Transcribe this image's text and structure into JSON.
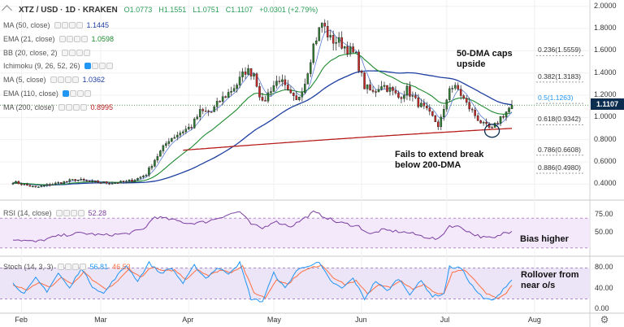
{
  "header": {
    "symbol": "XTZ / USD · 1D · KRAKEN",
    "open": "O1.0773",
    "high": "H1.1551",
    "low": "L1.0751",
    "close": "C1.1107",
    "change": "+0.0301 (+2.79%)"
  },
  "indicators": [
    {
      "label": "MA (50, close)",
      "value": "1.1445",
      "color": "#1e3fa0"
    },
    {
      "label": "EMA (21, close)",
      "value": "1.0598",
      "color": "#1e8a2f"
    },
    {
      "label": "BB (20, close, 2)",
      "value": "",
      "color": "#888888"
    },
    {
      "label": "Ichimoku (9, 26, 52, 26)",
      "value": "",
      "color": "#888888"
    },
    {
      "label": "MA (5, close)",
      "value": "1.0362",
      "color": "#1e3fa0"
    },
    {
      "label": "EMA (110, close)",
      "value": "",
      "color": "#888888"
    },
    {
      "label": "MA (200, close)",
      "value": "0.8995",
      "color": "#b71c1c"
    }
  ],
  "annotations": {
    "cap": [
      "50-DMA caps",
      "upside"
    ],
    "fail": [
      "Fails to extend break",
      "below 200-DMA"
    ],
    "bias": "Bias higher",
    "rollover": [
      "Rollover from",
      "near o/s"
    ]
  },
  "rsi": {
    "label": "RSI (14, close)",
    "value": "52.28",
    "color": "#7b3fa0"
  },
  "stoch": {
    "label": "Stoch (14, 3, 3)",
    "k_value": "56.81",
    "d_value": "46.53",
    "k_color": "#2196f3",
    "d_color": "#ff7043"
  },
  "last_price": "1.1107",
  "chart_data": {
    "type": "candlestick",
    "price_axis": {
      "ticks": [
        "2.0000",
        "1.8000",
        "1.6000",
        "1.4000",
        "1.2000",
        "1.0000",
        "0.8000",
        "0.6000",
        "0.4000"
      ],
      "values": [
        2.0,
        1.8,
        1.6,
        1.4,
        1.2,
        1.0,
        0.8,
        0.6,
        0.4
      ],
      "range": [
        0.3,
        2.02
      ]
    },
    "time_axis": {
      "ticks": [
        "Feb",
        "Mar",
        "Apr",
        "May",
        "Jun",
        "Jul",
        "Aug"
      ],
      "tick_days": [
        3,
        31,
        62,
        92,
        123,
        153,
        184
      ]
    },
    "fib_levels": [
      {
        "label": "0.236(1.5559)",
        "value": 1.5559
      },
      {
        "label": "0.382(1.3183)",
        "value": 1.3183
      },
      {
        "label": "0.5(1.1263)",
        "value": 1.1263,
        "highlight": true
      },
      {
        "label": "0.618(0.9342)",
        "value": 0.9342
      },
      {
        "label": "0.786(0.6608)",
        "value": 0.6608
      },
      {
        "label": "0.886(0.4980)",
        "value": 0.498
      }
    ],
    "close_anchors": [
      [
        0,
        0.42
      ],
      [
        8,
        0.37
      ],
      [
        14,
        0.4
      ],
      [
        22,
        0.44
      ],
      [
        28,
        0.42
      ],
      [
        34,
        0.41
      ],
      [
        40,
        0.42
      ],
      [
        44,
        0.45
      ],
      [
        47,
        0.49
      ],
      [
        50,
        0.62
      ],
      [
        55,
        0.8
      ],
      [
        60,
        0.88
      ],
      [
        63,
        0.92
      ],
      [
        66,
        1.05
      ],
      [
        70,
        1.05
      ],
      [
        73,
        1.15
      ],
      [
        76,
        1.22
      ],
      [
        79,
        1.3
      ],
      [
        82,
        1.42
      ],
      [
        85,
        1.4
      ],
      [
        88,
        1.12
      ],
      [
        91,
        1.26
      ],
      [
        94,
        1.35
      ],
      [
        97,
        1.22
      ],
      [
        100,
        1.14
      ],
      [
        103,
        1.32
      ],
      [
        106,
        1.65
      ],
      [
        109,
        1.85
      ],
      [
        112,
        1.7
      ],
      [
        115,
        1.68
      ],
      [
        118,
        1.62
      ],
      [
        121,
        1.55
      ],
      [
        124,
        1.28
      ],
      [
        127,
        1.22
      ],
      [
        130,
        1.3
      ],
      [
        133,
        1.25
      ],
      [
        136,
        1.18
      ],
      [
        139,
        1.25
      ],
      [
        142,
        1.15
      ],
      [
        145,
        1.08
      ],
      [
        148,
        1.0
      ],
      [
        150,
        0.93
      ],
      [
        152,
        1.05
      ],
      [
        154,
        1.28
      ],
      [
        157,
        1.25
      ],
      [
        160,
        1.12
      ],
      [
        163,
        1.02
      ],
      [
        166,
        0.93
      ],
      [
        169,
        0.89
      ],
      [
        172,
        1.0
      ],
      [
        174,
        1.05
      ],
      [
        176,
        1.1107
      ]
    ],
    "rsi_axis": {
      "ticks": [
        "75.00",
        "50.00"
      ],
      "values": [
        75,
        50
      ],
      "range": [
        22,
        90
      ],
      "band": [
        30,
        70
      ]
    },
    "rsi_anchors": [
      [
        0,
        42
      ],
      [
        8,
        38
      ],
      [
        16,
        46
      ],
      [
        24,
        50
      ],
      [
        32,
        47
      ],
      [
        40,
        49
      ],
      [
        46,
        55
      ],
      [
        50,
        72
      ],
      [
        56,
        68
      ],
      [
        62,
        63
      ],
      [
        68,
        65
      ],
      [
        72,
        70
      ],
      [
        76,
        75
      ],
      [
        80,
        79
      ],
      [
        84,
        62
      ],
      [
        88,
        56
      ],
      [
        92,
        66
      ],
      [
        98,
        59
      ],
      [
        102,
        68
      ],
      [
        106,
        78
      ],
      [
        110,
        72
      ],
      [
        114,
        65
      ],
      [
        118,
        62
      ],
      [
        122,
        59
      ],
      [
        126,
        48
      ],
      [
        130,
        54
      ],
      [
        136,
        52
      ],
      [
        140,
        50
      ],
      [
        144,
        46
      ],
      [
        148,
        43
      ],
      [
        150,
        41
      ],
      [
        154,
        60
      ],
      [
        158,
        58
      ],
      [
        162,
        49
      ],
      [
        166,
        44
      ],
      [
        170,
        43
      ],
      [
        173,
        50
      ],
      [
        176,
        52.28
      ]
    ],
    "stoch_axis": {
      "ticks": [
        "80.00",
        "40.00",
        "0.00"
      ],
      "values": [
        80,
        40,
        0
      ],
      "range": [
        -3,
        95
      ],
      "band": [
        20,
        80
      ]
    },
    "stoch_k_anchors": [
      [
        0,
        50
      ],
      [
        4,
        30
      ],
      [
        8,
        60
      ],
      [
        12,
        35
      ],
      [
        16,
        70
      ],
      [
        20,
        40
      ],
      [
        24,
        80
      ],
      [
        28,
        45
      ],
      [
        32,
        30
      ],
      [
        36,
        60
      ],
      [
        40,
        85
      ],
      [
        44,
        55
      ],
      [
        48,
        90
      ],
      [
        52,
        70
      ],
      [
        56,
        80
      ],
      [
        60,
        50
      ],
      [
        64,
        85
      ],
      [
        68,
        60
      ],
      [
        72,
        80
      ],
      [
        76,
        70
      ],
      [
        80,
        90
      ],
      [
        84,
        20
      ],
      [
        88,
        15
      ],
      [
        92,
        70
      ],
      [
        96,
        40
      ],
      [
        100,
        75
      ],
      [
        104,
        85
      ],
      [
        108,
        90
      ],
      [
        112,
        55
      ],
      [
        116,
        40
      ],
      [
        120,
        60
      ],
      [
        124,
        20
      ],
      [
        128,
        55
      ],
      [
        132,
        35
      ],
      [
        136,
        60
      ],
      [
        140,
        30
      ],
      [
        144,
        55
      ],
      [
        148,
        25
      ],
      [
        152,
        30
      ],
      [
        154,
        82
      ],
      [
        158,
        80
      ],
      [
        162,
        45
      ],
      [
        166,
        20
      ],
      [
        170,
        18
      ],
      [
        173,
        40
      ],
      [
        176,
        56.81
      ]
    ],
    "stoch_d_anchors": [
      [
        0,
        48
      ],
      [
        5,
        38
      ],
      [
        9,
        52
      ],
      [
        13,
        42
      ],
      [
        17,
        62
      ],
      [
        21,
        48
      ],
      [
        25,
        72
      ],
      [
        29,
        52
      ],
      [
        33,
        38
      ],
      [
        37,
        55
      ],
      [
        41,
        78
      ],
      [
        45,
        62
      ],
      [
        49,
        82
      ],
      [
        53,
        74
      ],
      [
        57,
        76
      ],
      [
        61,
        58
      ],
      [
        65,
        78
      ],
      [
        69,
        65
      ],
      [
        73,
        76
      ],
      [
        77,
        72
      ],
      [
        81,
        84
      ],
      [
        85,
        32
      ],
      [
        89,
        22
      ],
      [
        93,
        58
      ],
      [
        97,
        48
      ],
      [
        101,
        70
      ],
      [
        105,
        80
      ],
      [
        109,
        86
      ],
      [
        113,
        62
      ],
      [
        117,
        48
      ],
      [
        121,
        55
      ],
      [
        125,
        30
      ],
      [
        129,
        48
      ],
      [
        133,
        42
      ],
      [
        137,
        55
      ],
      [
        141,
        38
      ],
      [
        145,
        48
      ],
      [
        149,
        32
      ],
      [
        152,
        30
      ],
      [
        155,
        72
      ],
      [
        159,
        78
      ],
      [
        163,
        55
      ],
      [
        167,
        30
      ],
      [
        171,
        22
      ],
      [
        174,
        32
      ],
      [
        176,
        46.53
      ]
    ]
  }
}
